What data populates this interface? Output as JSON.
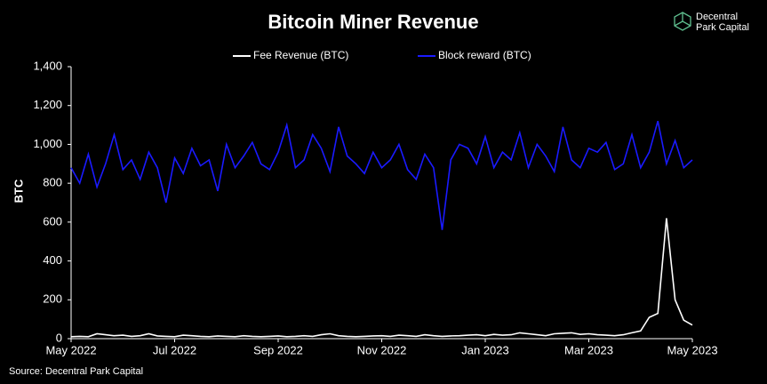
{
  "chart_data": {
    "type": "line",
    "title": "Bitcoin Miner Revenue",
    "y_label": "BTC",
    "source": "Source: Decentral Park Capital",
    "brand": [
      "Decentral",
      "Park Capital"
    ],
    "categories": [
      "May 2022",
      null,
      null,
      null,
      null,
      null,
      null,
      null,
      null,
      null,
      null,
      null,
      "Jul 2022",
      null,
      null,
      null,
      null,
      null,
      null,
      null,
      null,
      null,
      null,
      null,
      "Sep 2022",
      null,
      null,
      null,
      null,
      null,
      null,
      null,
      null,
      null,
      null,
      null,
      "Nov 2022",
      null,
      null,
      null,
      null,
      null,
      null,
      null,
      null,
      null,
      null,
      null,
      "Jan 2023",
      null,
      null,
      null,
      null,
      null,
      null,
      null,
      null,
      null,
      null,
      null,
      "Mar 2023",
      null,
      null,
      null,
      null,
      null,
      null,
      null,
      null,
      null,
      null,
      null,
      "May 2023"
    ],
    "series": [
      {
        "name": "Fee Revenue (BTC)",
        "color": "#ffffff",
        "values": [
          10,
          12,
          10,
          25,
          20,
          15,
          18,
          12,
          15,
          25,
          14,
          12,
          10,
          18,
          15,
          12,
          10,
          14,
          12,
          10,
          15,
          12,
          10,
          12,
          14,
          10,
          12,
          15,
          12,
          20,
          25,
          15,
          12,
          10,
          12,
          14,
          15,
          12,
          18,
          15,
          12,
          20,
          15,
          12,
          14,
          15,
          18,
          20,
          15,
          22,
          18,
          20,
          30,
          25,
          20,
          15,
          25,
          28,
          30,
          22,
          25,
          20,
          18,
          15,
          20,
          30,
          40,
          110,
          130,
          620,
          200,
          95,
          70
        ]
      },
      {
        "name": "Block reward (BTC)",
        "color": "#1a1aff",
        "values": [
          880,
          800,
          950,
          780,
          900,
          1050,
          870,
          920,
          820,
          960,
          880,
          700,
          930,
          850,
          980,
          890,
          920,
          760,
          1000,
          880,
          940,
          1010,
          900,
          870,
          960,
          1100,
          880,
          920,
          1050,
          980,
          860,
          1090,
          940,
          900,
          850,
          960,
          880,
          920,
          1000,
          870,
          820,
          950,
          880,
          560,
          920,
          1000,
          980,
          900,
          1040,
          880,
          960,
          920,
          1060,
          880,
          1000,
          940,
          860,
          1090,
          920,
          880,
          980,
          960,
          1010,
          870,
          900,
          1050,
          880,
          960,
          1120,
          900,
          1020,
          880,
          920
        ]
      }
    ],
    "ylim": [
      0,
      1400
    ],
    "yticks": [
      0,
      200,
      400,
      600,
      800,
      {
        "value": 1000,
        "label": "1,000"
      },
      {
        "value": 1200,
        "label": "1,200"
      },
      {
        "value": 1400,
        "label": "1,400"
      }
    ]
  }
}
